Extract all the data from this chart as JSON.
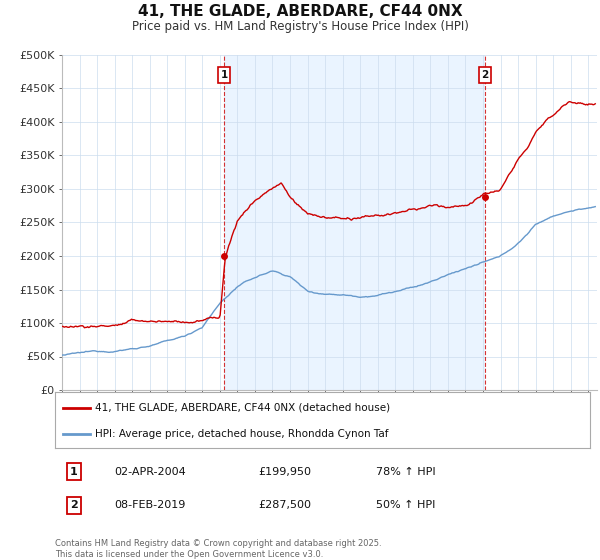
{
  "title": "41, THE GLADE, ABERDARE, CF44 0NX",
  "subtitle": "Price paid vs. HM Land Registry's House Price Index (HPI)",
  "ylabel_ticks": [
    "£0",
    "£50K",
    "£100K",
    "£150K",
    "£200K",
    "£250K",
    "£300K",
    "£350K",
    "£400K",
    "£450K",
    "£500K"
  ],
  "ytick_values": [
    0,
    50000,
    100000,
    150000,
    200000,
    250000,
    300000,
    350000,
    400000,
    450000,
    500000
  ],
  "ylim": [
    0,
    500000
  ],
  "xlim_start": 1995.0,
  "xlim_end": 2025.5,
  "red_color": "#cc0000",
  "blue_color": "#6699cc",
  "fill_color": "#ddeeff",
  "marker1_x": 2004.25,
  "marker1_y": 199950,
  "marker2_x": 2019.1,
  "marker2_y": 287500,
  "marker1_label": "1",
  "marker2_label": "2",
  "sale1_date": "02-APR-2004",
  "sale1_price": "£199,950",
  "sale1_info": "78% ↑ HPI",
  "sale2_date": "08-FEB-2019",
  "sale2_price": "£287,500",
  "sale2_info": "50% ↑ HPI",
  "legend_line1": "41, THE GLADE, ABERDARE, CF44 0NX (detached house)",
  "legend_line2": "HPI: Average price, detached house, Rhondda Cynon Taf",
  "footer": "Contains HM Land Registry data © Crown copyright and database right 2025.\nThis data is licensed under the Open Government Licence v3.0.",
  "background_color": "#ffffff",
  "plot_bg": "#ffffff",
  "grid_color": "#ccddee"
}
